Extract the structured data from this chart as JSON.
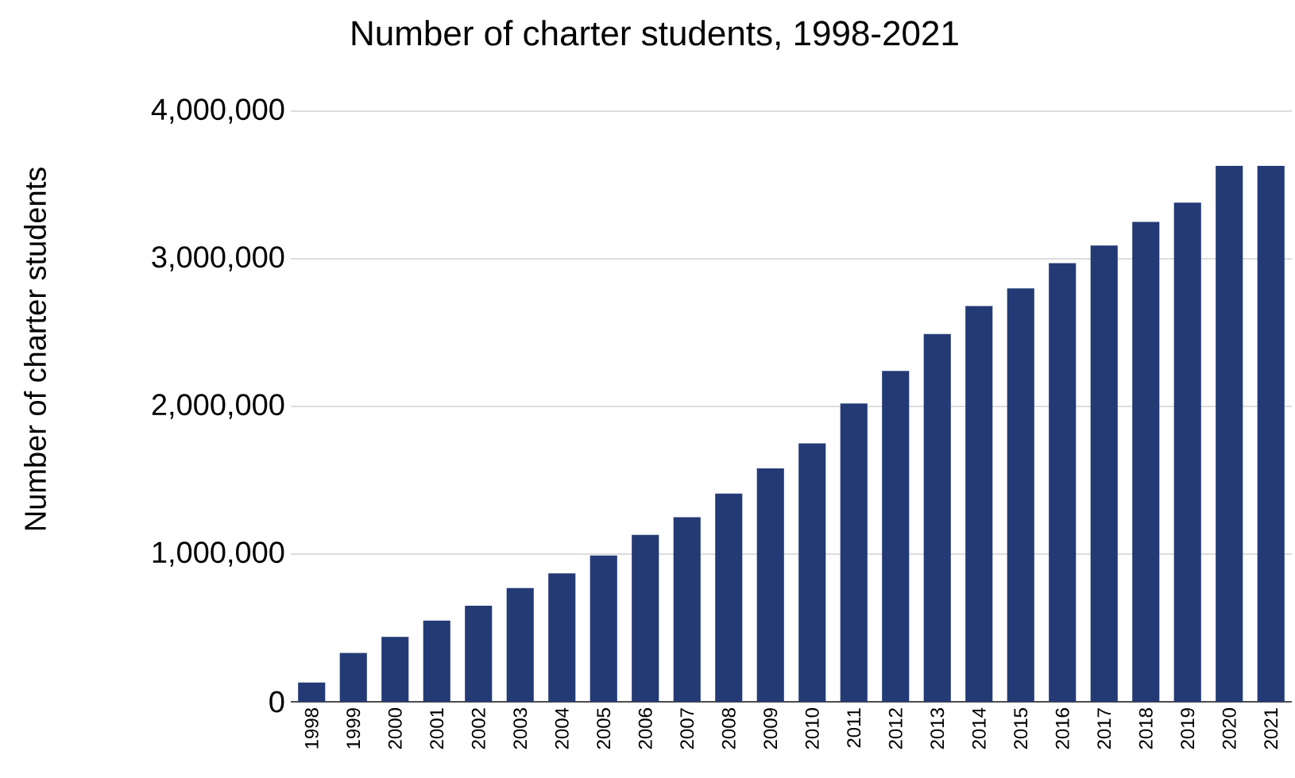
{
  "chart_data": {
    "type": "bar",
    "title": "Number of charter students, 1998-2021",
    "ylabel": "Number of charter students",
    "categories": [
      "1998",
      "1999",
      "2000",
      "2001",
      "2002",
      "2003",
      "2004",
      "2005",
      "2006",
      "2007",
      "2008",
      "2009",
      "2010",
      "2011",
      "2012",
      "2013",
      "2014",
      "2015",
      "2016",
      "2017",
      "2018",
      "2019",
      "2020",
      "2021"
    ],
    "values": [
      130000,
      330000,
      440000,
      550000,
      650000,
      770000,
      870000,
      990000,
      1130000,
      1250000,
      1410000,
      1580000,
      1750000,
      2020000,
      2240000,
      2490000,
      2680000,
      2800000,
      2970000,
      3090000,
      3250000,
      3380000,
      3630000,
      3630000
    ],
    "color": "#233a75",
    "ylim": [
      0,
      4000000
    ],
    "yticks": [
      {
        "value": 0,
        "label": "0"
      },
      {
        "value": 1000000,
        "label": "1,000,000"
      },
      {
        "value": 2000000,
        "label": "2,000,000"
      },
      {
        "value": 3000000,
        "label": "3,000,000"
      },
      {
        "value": 4000000,
        "label": "4,000,000"
      }
    ],
    "grid": "y"
  }
}
